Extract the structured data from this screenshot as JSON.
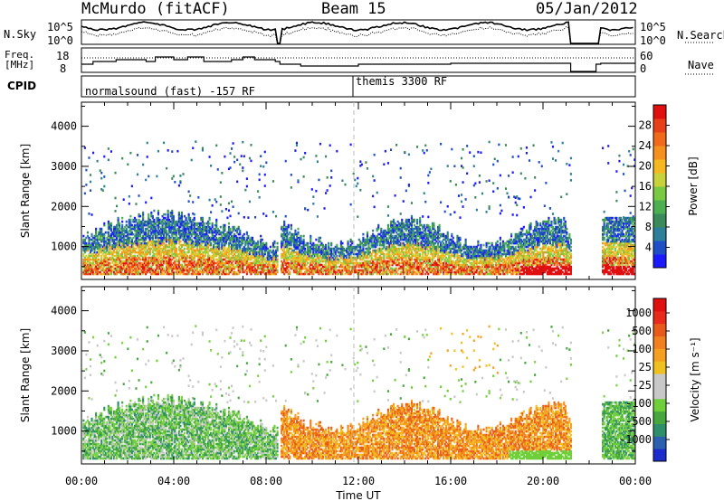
{
  "header": {
    "title": "McMurdo (fitACF)",
    "beam": "Beam 15",
    "date": "05/Jan/2012"
  },
  "top_panels": {
    "nsky_label": "N.Sky",
    "nsky_ticks": [
      "10^5",
      "10^0"
    ],
    "nsearch_label": "N.Search",
    "nsearch_ticks": [
      "10^5",
      "10^0"
    ],
    "freq_label_1": "Freq.",
    "freq_label_2": "[MHz]",
    "freq_ticks": [
      "18",
      "8"
    ],
    "nave_label": "Nave",
    "nave_ticks": [
      "60",
      "0"
    ],
    "cpid_label": "CPID",
    "cpid_segments": [
      {
        "text": "normalsound (fast) -157 RF",
        "start_hour": 0
      },
      {
        "text": "themis 3300 RF",
        "start_hour": 12
      }
    ]
  },
  "chart_data": [
    {
      "type": "heatmap",
      "name": "Power",
      "xlabel": "",
      "ylabel": "Slant Range [km]",
      "x_range_hours": [
        0,
        24
      ],
      "ylim": [
        180,
        4600
      ],
      "x_ticks": [
        "00:00",
        "04:00",
        "08:00",
        "12:00",
        "16:00",
        "20:00",
        "00:00"
      ],
      "y_ticks": [
        1000,
        2000,
        3000,
        4000
      ],
      "colorbar": {
        "label": "Power [dB]",
        "ticks": [
          4,
          8,
          12,
          16,
          20,
          24,
          28
        ],
        "colors": [
          "#1a1aff",
          "#1f4fc8",
          "#2e7f9a",
          "#3a8a5a",
          "#4caf50",
          "#7ac943",
          "#c8d23a",
          "#f5b820",
          "#f5901e",
          "#f06a1a",
          "#e8411a",
          "#e01010"
        ]
      }
    },
    {
      "type": "heatmap",
      "name": "Velocity",
      "xlabel": "Time UT",
      "ylabel": "Slant Range [km]",
      "x_range_hours": [
        0,
        24
      ],
      "ylim": [
        180,
        4600
      ],
      "x_ticks": [
        "00:00",
        "04:00",
        "08:00",
        "12:00",
        "16:00",
        "20:00",
        "00:00"
      ],
      "y_ticks": [
        1000,
        2000,
        3000,
        4000
      ],
      "colorbar": {
        "label": "Velocity [m s⁻¹]",
        "ticks": [
          1000,
          500,
          100,
          25,
          -25,
          -100,
          -500,
          -1000
        ],
        "colors": [
          "#1a2ccc",
          "#2b5fb0",
          "#2f8f6a",
          "#46a83c",
          "#6fcf3a",
          "#c8c8c8",
          "#c8c8c8",
          "#f0c020",
          "#f5a020",
          "#f08020",
          "#e85a1a",
          "#e82a1a",
          "#e01010"
        ]
      }
    }
  ]
}
